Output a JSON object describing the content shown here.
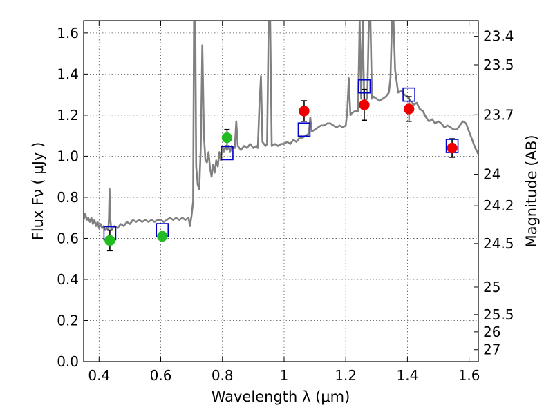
{
  "chart_data": {
    "type": "scatter",
    "xlabel": "Wavelength  λ (μm)",
    "ylabel": "Flux  Fν  ( μJy )",
    "y2label": "Magnitude (AB)",
    "xlim": [
      0.35,
      1.63
    ],
    "ylim": [
      0.0,
      1.66
    ],
    "grid": true,
    "x_ticks": [
      0.4,
      0.6,
      0.8,
      1.0,
      1.2,
      1.4,
      1.6
    ],
    "x_tick_labels": [
      "0.4",
      "0.6",
      "0.8",
      "1",
      "1.2",
      "1.4",
      "1.6"
    ],
    "y_ticks": [
      0.0,
      0.2,
      0.4,
      0.6,
      0.8,
      1.0,
      1.2,
      1.4,
      1.6
    ],
    "y_tick_labels": [
      "0.0",
      "0.2",
      "0.4",
      "0.6",
      "0.8",
      "1.0",
      "1.2",
      "1.4",
      "1.6"
    ],
    "y2_ticks": [
      {
        "label": "23.4",
        "flux": 1.584
      },
      {
        "label": "23.5",
        "flux": 1.445
      },
      {
        "label": "23.7",
        "flux": 1.202
      },
      {
        "label": "24",
        "flux": 0.912
      },
      {
        "label": "24.2",
        "flux": 0.759
      },
      {
        "label": "24.5",
        "flux": 0.575
      },
      {
        "label": "25",
        "flux": 0.363
      },
      {
        "label": "25.5",
        "flux": 0.229
      },
      {
        "label": "26",
        "flux": 0.145
      },
      {
        "label": "27",
        "flux": 0.058
      }
    ],
    "colors": {
      "model": "#808080",
      "green_points": "#22bb22",
      "red_points": "#ee0000",
      "model_photometry": "#0000cc",
      "errorbar": "#000000"
    },
    "series": [
      {
        "kind": "line",
        "points": [
          [
            0.35,
            0.69
          ],
          [
            0.355,
            0.72
          ],
          [
            0.36,
            0.69
          ],
          [
            0.365,
            0.7
          ],
          [
            0.37,
            0.68
          ],
          [
            0.375,
            0.7
          ],
          [
            0.38,
            0.67
          ],
          [
            0.385,
            0.69
          ],
          [
            0.39,
            0.66
          ],
          [
            0.395,
            0.68
          ],
          [
            0.4,
            0.65
          ],
          [
            0.405,
            0.67
          ],
          [
            0.41,
            0.65
          ],
          [
            0.415,
            0.66
          ],
          [
            0.42,
            0.64
          ],
          [
            0.425,
            0.65
          ],
          [
            0.43,
            0.64
          ],
          [
            0.432,
            0.7
          ],
          [
            0.434,
            0.84
          ],
          [
            0.436,
            0.7
          ],
          [
            0.44,
            0.64
          ],
          [
            0.45,
            0.66
          ],
          [
            0.46,
            0.65
          ],
          [
            0.47,
            0.67
          ],
          [
            0.48,
            0.66
          ],
          [
            0.49,
            0.68
          ],
          [
            0.5,
            0.67
          ],
          [
            0.51,
            0.69
          ],
          [
            0.52,
            0.68
          ],
          [
            0.53,
            0.69
          ],
          [
            0.54,
            0.68
          ],
          [
            0.55,
            0.69
          ],
          [
            0.56,
            0.68
          ],
          [
            0.57,
            0.69
          ],
          [
            0.58,
            0.68
          ],
          [
            0.59,
            0.69
          ],
          [
            0.6,
            0.69
          ],
          [
            0.61,
            0.68
          ],
          [
            0.62,
            0.69
          ],
          [
            0.63,
            0.7
          ],
          [
            0.64,
            0.69
          ],
          [
            0.65,
            0.7
          ],
          [
            0.66,
            0.69
          ],
          [
            0.67,
            0.7
          ],
          [
            0.68,
            0.69
          ],
          [
            0.69,
            0.7
          ],
          [
            0.695,
            0.66
          ],
          [
            0.7,
            0.71
          ],
          [
            0.705,
            0.78
          ],
          [
            0.708,
            1.66
          ],
          [
            0.712,
            1.66
          ],
          [
            0.715,
            0.95
          ],
          [
            0.72,
            0.86
          ],
          [
            0.725,
            0.84
          ],
          [
            0.73,
            1.05
          ],
          [
            0.735,
            1.54
          ],
          [
            0.74,
            1.1
          ],
          [
            0.745,
            0.98
          ],
          [
            0.75,
            0.97
          ],
          [
            0.755,
            1.02
          ],
          [
            0.76,
            0.94
          ],
          [
            0.765,
            0.9
          ],
          [
            0.77,
            0.96
          ],
          [
            0.775,
            0.92
          ],
          [
            0.78,
            0.98
          ],
          [
            0.785,
            0.95
          ],
          [
            0.79,
            1.02
          ],
          [
            0.795,
            0.98
          ],
          [
            0.8,
            1.05
          ],
          [
            0.805,
            1.02
          ],
          [
            0.81,
            1.05
          ],
          [
            0.815,
            1.03
          ],
          [
            0.82,
            1.05
          ],
          [
            0.825,
            1.02
          ],
          [
            0.83,
            1.05
          ],
          [
            0.835,
            1.04
          ],
          [
            0.84,
            1.04
          ],
          [
            0.845,
            1.17
          ],
          [
            0.85,
            1.05
          ],
          [
            0.86,
            1.03
          ],
          [
            0.87,
            1.05
          ],
          [
            0.88,
            1.04
          ],
          [
            0.89,
            1.06
          ],
          [
            0.9,
            1.04
          ],
          [
            0.91,
            1.05
          ],
          [
            0.915,
            1.04
          ],
          [
            0.92,
            1.25
          ],
          [
            0.925,
            1.39
          ],
          [
            0.93,
            1.07
          ],
          [
            0.94,
            1.05
          ],
          [
            0.945,
            1.06
          ],
          [
            0.95,
            1.66
          ],
          [
            0.955,
            1.66
          ],
          [
            0.96,
            1.05
          ],
          [
            0.97,
            1.06
          ],
          [
            0.98,
            1.05
          ],
          [
            0.99,
            1.06
          ],
          [
            1.0,
            1.06
          ],
          [
            1.01,
            1.07
          ],
          [
            1.02,
            1.06
          ],
          [
            1.03,
            1.08
          ],
          [
            1.04,
            1.07
          ],
          [
            1.05,
            1.09
          ],
          [
            1.06,
            1.09
          ],
          [
            1.07,
            1.1
          ],
          [
            1.08,
            1.11
          ],
          [
            1.085,
            1.19
          ],
          [
            1.09,
            1.12
          ],
          [
            1.1,
            1.13
          ],
          [
            1.11,
            1.14
          ],
          [
            1.12,
            1.15
          ],
          [
            1.13,
            1.15
          ],
          [
            1.14,
            1.16
          ],
          [
            1.15,
            1.16
          ],
          [
            1.16,
            1.15
          ],
          [
            1.17,
            1.14
          ],
          [
            1.18,
            1.15
          ],
          [
            1.19,
            1.14
          ],
          [
            1.2,
            1.15
          ],
          [
            1.205,
            1.22
          ],
          [
            1.21,
            1.38
          ],
          [
            1.215,
            1.2
          ],
          [
            1.22,
            1.21
          ],
          [
            1.23,
            1.22
          ],
          [
            1.24,
            1.22
          ],
          [
            1.245,
            1.66
          ],
          [
            1.25,
            1.28
          ],
          [
            1.255,
            1.66
          ],
          [
            1.26,
            1.27
          ],
          [
            1.27,
            1.28
          ],
          [
            1.275,
            1.66
          ],
          [
            1.28,
            1.66
          ],
          [
            1.285,
            1.28
          ],
          [
            1.29,
            1.29
          ],
          [
            1.3,
            1.28
          ],
          [
            1.31,
            1.27
          ],
          [
            1.32,
            1.28
          ],
          [
            1.33,
            1.29
          ],
          [
            1.34,
            1.31
          ],
          [
            1.345,
            1.38
          ],
          [
            1.35,
            1.66
          ],
          [
            1.355,
            1.66
          ],
          [
            1.36,
            1.42
          ],
          [
            1.37,
            1.31
          ],
          [
            1.38,
            1.32
          ],
          [
            1.39,
            1.3
          ],
          [
            1.4,
            1.29
          ],
          [
            1.41,
            1.27
          ],
          [
            1.42,
            1.25
          ],
          [
            1.43,
            1.26
          ],
          [
            1.44,
            1.23
          ],
          [
            1.45,
            1.22
          ],
          [
            1.46,
            1.19
          ],
          [
            1.47,
            1.17
          ],
          [
            1.48,
            1.18
          ],
          [
            1.49,
            1.16
          ],
          [
            1.5,
            1.17
          ],
          [
            1.51,
            1.16
          ],
          [
            1.52,
            1.14
          ],
          [
            1.53,
            1.15
          ],
          [
            1.54,
            1.14
          ],
          [
            1.55,
            1.13
          ],
          [
            1.56,
            1.13
          ],
          [
            1.57,
            1.15
          ],
          [
            1.58,
            1.17
          ],
          [
            1.59,
            1.16
          ],
          [
            1.6,
            1.12
          ],
          [
            1.61,
            1.08
          ],
          [
            1.62,
            1.04
          ],
          [
            1.63,
            1.01
          ]
        ]
      },
      {
        "kind": "markers-circle-green",
        "points": [
          {
            "x": 0.435,
            "y": 0.59,
            "err": 0.05
          },
          {
            "x": 0.605,
            "y": 0.61,
            "err": 0.02
          },
          {
            "x": 0.815,
            "y": 1.09,
            "err": 0.04
          }
        ]
      },
      {
        "kind": "markers-circle-red",
        "points": [
          {
            "x": 1.065,
            "y": 1.22,
            "err": 0.05
          },
          {
            "x": 1.26,
            "y": 1.25,
            "err": 0.075
          },
          {
            "x": 1.405,
            "y": 1.23,
            "err": 0.06
          },
          {
            "x": 1.545,
            "y": 1.04,
            "err": 0.045
          }
        ]
      },
      {
        "kind": "markers-square-open",
        "points": [
          {
            "x": 0.435,
            "y": 0.625
          },
          {
            "x": 0.605,
            "y": 0.64
          },
          {
            "x": 0.815,
            "y": 1.015
          },
          {
            "x": 1.065,
            "y": 1.13
          },
          {
            "x": 1.26,
            "y": 1.34
          },
          {
            "x": 1.405,
            "y": 1.3
          },
          {
            "x": 1.545,
            "y": 1.05
          }
        ]
      }
    ]
  }
}
